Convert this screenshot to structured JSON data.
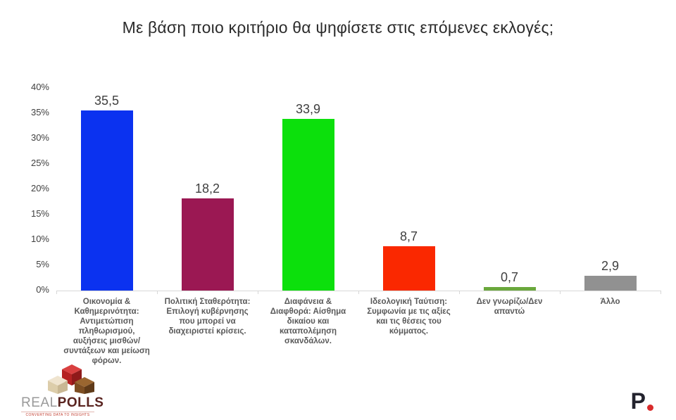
{
  "title": "Με βάση ποιο κριτήριο θα ψηφίσετε στις επόμενες εκλογές;",
  "chart_data": {
    "type": "bar",
    "title": "Με βάση ποιο κριτήριο θα ψηφίσετε στις επόμενες εκλογές;",
    "categories": [
      "Οικονομία & Καθημερινότητα: Αντιμετώπιση πληθωρισμού, αυξήσεις μισθών/συντάξεων και μείωση φόρων.",
      "Πολιτική Σταθερότητα: Επιλογή κυβέρνησης που μπορεί να διαχειριστεί κρίσεις.",
      "Διαφάνεια & Διαφθορά: Αίσθημα δικαίου και καταπολέμηση σκανδάλων.",
      "Ιδεολογική Ταύτιση: Συμφωνία με τις αξίες και τις θέσεις του κόμματος.",
      "Δεν γνωρίζω/Δεν απαντώ",
      "Άλλο"
    ],
    "values": [
      35.5,
      18.2,
      33.9,
      8.7,
      0.7,
      2.9
    ],
    "value_labels": [
      "35,5",
      "18,2",
      "33,9",
      "8,7",
      "0,7",
      "2,9"
    ],
    "bar_colors": [
      "#0b32f0",
      "#9b1853",
      "#0ce00c",
      "#fa2800",
      "#6aa83c",
      "#919191"
    ],
    "xlabel": "",
    "ylabel": "",
    "ylim": [
      0,
      40
    ],
    "yticks": [
      "40%",
      "35%",
      "30%",
      "25%",
      "20%",
      "15%",
      "10%",
      "5%",
      "0%"
    ],
    "grid": false,
    "legend": false
  },
  "footer": {
    "realpolls": {
      "brand_light": "REAL",
      "brand_bold": "POLLS",
      "tagline": "CONVERTING DATA TO INSIGHTS"
    },
    "parapolitika": {
      "letter": "P"
    }
  },
  "colors": {
    "axis_line": "#d7d7d7",
    "tick_text": "#404040",
    "category_text": "#595959",
    "value_text": "#3f3f3f",
    "title_text": "#2b2b2b",
    "realpolls_red": "#c0392b",
    "parapolitika_dark": "#23232e",
    "parapolitika_dot": "#d92b2b"
  }
}
